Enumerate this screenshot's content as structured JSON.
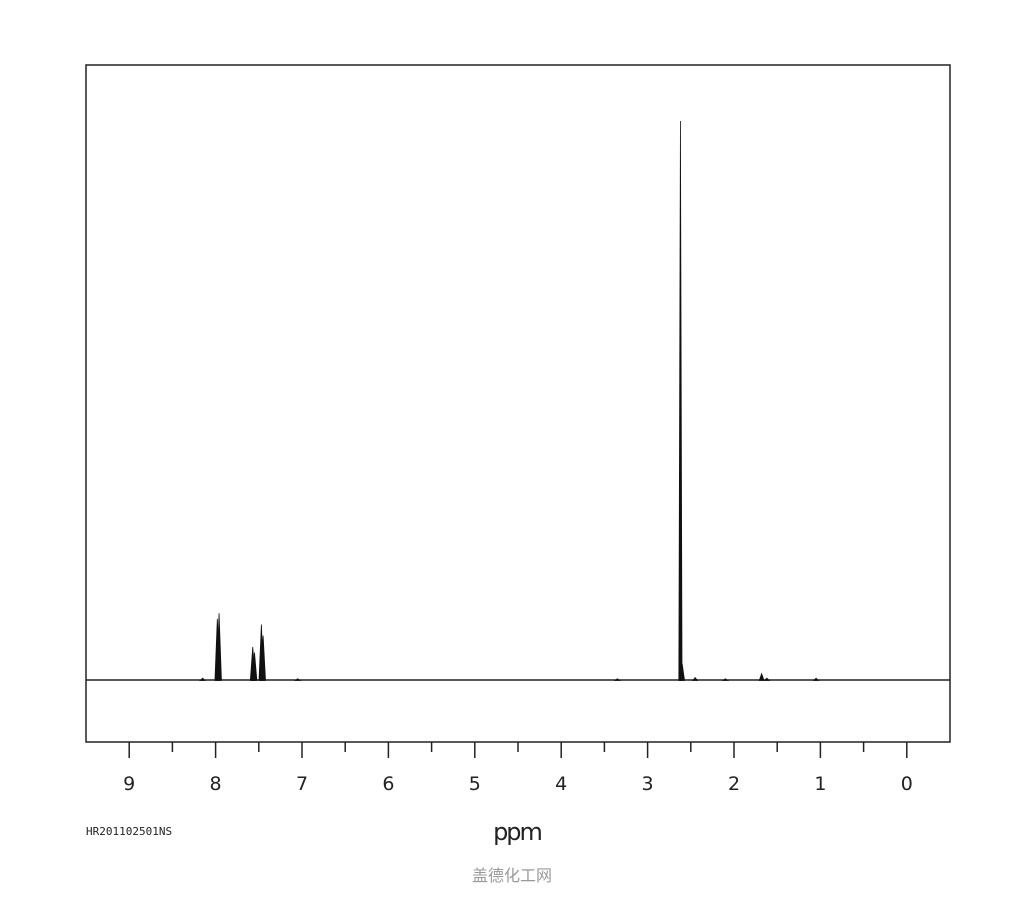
{
  "chart_data": {
    "type": "line",
    "title": "",
    "xlabel": "ppm",
    "ylabel": "",
    "xlim": [
      9.5,
      -0.5
    ],
    "ylim": [
      -11,
      110
    ],
    "x_reversed": true,
    "grid": false,
    "major_ticks": [
      9,
      8,
      7,
      6,
      5,
      4,
      3,
      2,
      1,
      0
    ],
    "tick_labels": [
      "9",
      "8",
      "7",
      "6",
      "5",
      "4",
      "3",
      "2",
      "1",
      "0"
    ],
    "minor_ticks": [
      8.5,
      7.5,
      6.5,
      5.5,
      4.5,
      3.5,
      2.5,
      1.5,
      0.5
    ],
    "peaks": [
      {
        "ppm": 7.98,
        "intensity": 11
      },
      {
        "ppm": 7.96,
        "intensity": 12
      },
      {
        "ppm": 7.57,
        "intensity": 6
      },
      {
        "ppm": 7.55,
        "intensity": 5
      },
      {
        "ppm": 7.47,
        "intensity": 10
      },
      {
        "ppm": 7.45,
        "intensity": 8
      },
      {
        "ppm": 8.15,
        "intensity": 0.4
      },
      {
        "ppm": 7.05,
        "intensity": 0.3
      },
      {
        "ppm": 3.35,
        "intensity": 0.3
      },
      {
        "ppm": 2.62,
        "intensity": 100
      },
      {
        "ppm": 2.6,
        "intensity": 3
      },
      {
        "ppm": 2.45,
        "intensity": 0.5
      },
      {
        "ppm": 2.1,
        "intensity": 0.3
      },
      {
        "ppm": 1.68,
        "intensity": 1.2
      },
      {
        "ppm": 1.62,
        "intensity": 0.4
      },
      {
        "ppm": 1.05,
        "intensity": 0.4
      }
    ]
  },
  "sample_id": "HR201102501NS",
  "watermark": "盖德化工网"
}
